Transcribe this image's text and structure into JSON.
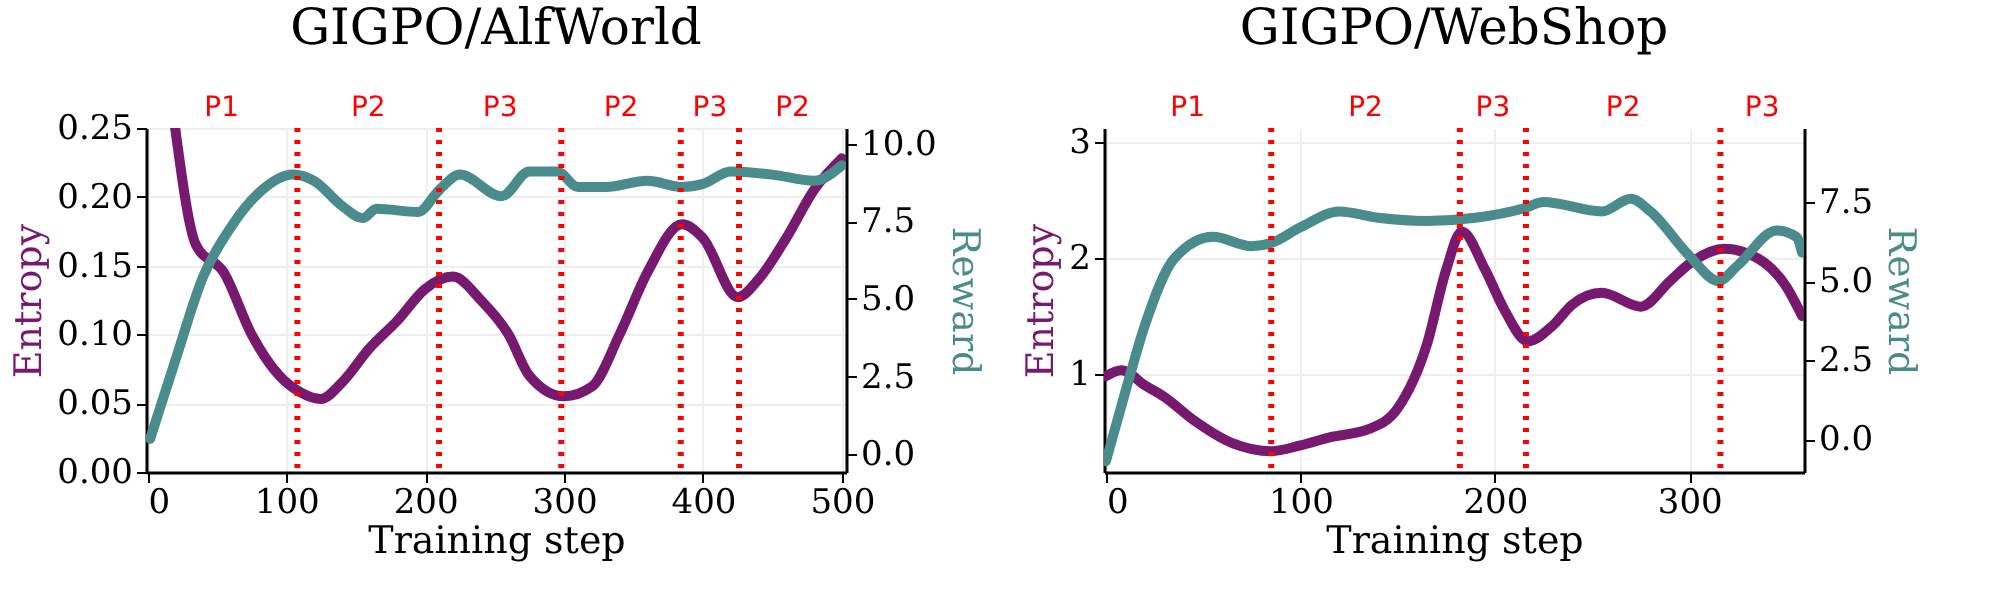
{
  "chart_data": [
    {
      "type": "line",
      "title": "GIGPO/AlfWorld",
      "xlabel": "Training step",
      "ylabel": "Entropy",
      "y2label": "Reward",
      "xlim": [
        -1,
        503
      ],
      "xticks": [
        0,
        100,
        200,
        300,
        400,
        500
      ],
      "ylim": [
        0,
        0.25
      ],
      "yticks": [
        {
          "value": 0,
          "label": "0.00"
        },
        {
          "value": 0.05,
          "label": "0.05"
        },
        {
          "value": 0.1,
          "label": "0.10"
        },
        {
          "value": 0.15,
          "label": "0.15"
        },
        {
          "value": 0.2,
          "label": "0.20"
        },
        {
          "value": 0.25,
          "label": "0.25"
        }
      ],
      "y2lim": [
        -0.57,
        10.5
      ],
      "y2ticks": [
        {
          "value": 0,
          "label": "0.0"
        },
        {
          "value": 2.5,
          "label": "2.5"
        },
        {
          "value": 5,
          "label": "5.0"
        },
        {
          "value": 7.5,
          "label": "7.5"
        },
        {
          "value": 10,
          "label": "10.0"
        }
      ],
      "grid": true,
      "line_style": "solid",
      "marker": "none",
      "series": [
        {
          "color": "#771a6f",
          "x": [
            20,
            35,
            55,
            75,
            95,
            110,
            125,
            140,
            160,
            180,
            200,
            220,
            240,
            260,
            275,
            300,
            320,
            340,
            360,
            385,
            400,
            425,
            440,
            460,
            480,
            500
          ],
          "values": [
            0.25,
            0.165,
            0.145,
            0.1,
            0.07,
            0.058,
            0.053,
            0.065,
            0.09,
            0.11,
            0.133,
            0.142,
            0.125,
            0.1,
            0.07,
            0.055,
            0.062,
            0.1,
            0.145,
            0.18,
            0.17,
            0.127,
            0.14,
            0.17,
            0.205,
            0.228
          ]
        },
        {
          "color": "#4a8b8b",
          "axis": "y2",
          "x": [
            2,
            20,
            40,
            60,
            80,
            105,
            120,
            140,
            155,
            165,
            195,
            210,
            225,
            255,
            275,
            295,
            310,
            330,
            360,
            385,
            400,
            420,
            450,
            480,
            500
          ],
          "values": [
            0.5,
            3.0,
            5.7,
            7.3,
            8.4,
            9.0,
            8.8,
            8.0,
            7.6,
            7.9,
            7.8,
            8.5,
            9.0,
            8.3,
            9.1,
            9.1,
            8.6,
            8.6,
            8.8,
            8.6,
            8.7,
            9.1,
            9.0,
            8.8,
            9.3
          ]
        }
      ],
      "ref_lines": [
        {
          "axis": "x",
          "value": 108,
          "color": "#ff0000",
          "line_style": "dotted"
        },
        {
          "axis": "x",
          "value": 210,
          "color": "#ff0000",
          "line_style": "dotted"
        },
        {
          "axis": "x",
          "value": 298,
          "color": "#ff0000",
          "line_style": "dotted"
        },
        {
          "axis": "x",
          "value": 384,
          "color": "#ff0000",
          "line_style": "dotted"
        },
        {
          "axis": "x",
          "value": 426,
          "color": "#ff0000",
          "line_style": "dotted"
        }
      ],
      "annotations": [
        "P1",
        "P2",
        "P3",
        "P2",
        "P3",
        "P2"
      ]
    },
    {
      "type": "line",
      "title": "GIGPO/WebShop",
      "xlabel": "Training step",
      "ylabel": "Entropy",
      "y2label": "Reward",
      "xlim": [
        -1,
        359
      ],
      "xticks": [
        0,
        100,
        200,
        300
      ],
      "ylim": [
        0.15,
        3.125
      ],
      "yticks": [
        1,
        2,
        3
      ],
      "y2lim": [
        -1.04,
        9.84
      ],
      "y2ticks": [
        {
          "value": 0,
          "label": "0.0"
        },
        {
          "value": 2.5,
          "label": "2.5"
        },
        {
          "value": 5,
          "label": "5.0"
        },
        {
          "value": 7.5,
          "label": "7.5"
        }
      ],
      "grid": true,
      "line_style": "solid",
      "marker": "none",
      "series": [
        {
          "color": "#771a6f",
          "x": [
            0,
            8,
            20,
            30,
            45,
            65,
            85,
            100,
            115,
            135,
            150,
            165,
            175,
            183,
            195,
            205,
            217,
            230,
            240,
            255,
            275,
            290,
            300,
            318,
            335,
            350,
            358
          ],
          "values": [
            0.98,
            1.03,
            0.9,
            0.8,
            0.6,
            0.4,
            0.33,
            0.38,
            0.45,
            0.52,
            0.7,
            1.25,
            1.9,
            2.23,
            1.9,
            1.55,
            1.28,
            1.42,
            1.6,
            1.7,
            1.58,
            1.8,
            1.95,
            2.08,
            2.0,
            1.75,
            1.5
          ]
        },
        {
          "color": "#4a8b8b",
          "axis": "y2",
          "x": [
            0,
            10,
            20,
            35,
            55,
            75,
            85,
            100,
            120,
            140,
            165,
            190,
            215,
            225,
            255,
            270,
            280,
            300,
            315,
            325,
            345,
            355,
            358
          ],
          "values": [
            -0.7,
            1.5,
            3.6,
            5.7,
            6.4,
            6.1,
            6.2,
            6.7,
            7.2,
            7.0,
            6.9,
            7.0,
            7.3,
            7.5,
            7.2,
            7.6,
            7.2,
            5.8,
            5.0,
            5.5,
            6.6,
            6.4,
            5.9
          ]
        }
      ],
      "ref_lines": [
        {
          "axis": "x",
          "value": 85,
          "color": "#ff0000",
          "line_style": "dotted"
        },
        {
          "axis": "x",
          "value": 182,
          "color": "#ff0000",
          "line_style": "dotted"
        },
        {
          "axis": "x",
          "value": 216,
          "color": "#ff0000",
          "line_style": "dotted"
        },
        {
          "axis": "x",
          "value": 316,
          "color": "#ff0000",
          "line_style": "dotted"
        }
      ],
      "annotations": [
        "P1",
        "P2",
        "P3",
        "P2",
        "P3"
      ]
    }
  ]
}
